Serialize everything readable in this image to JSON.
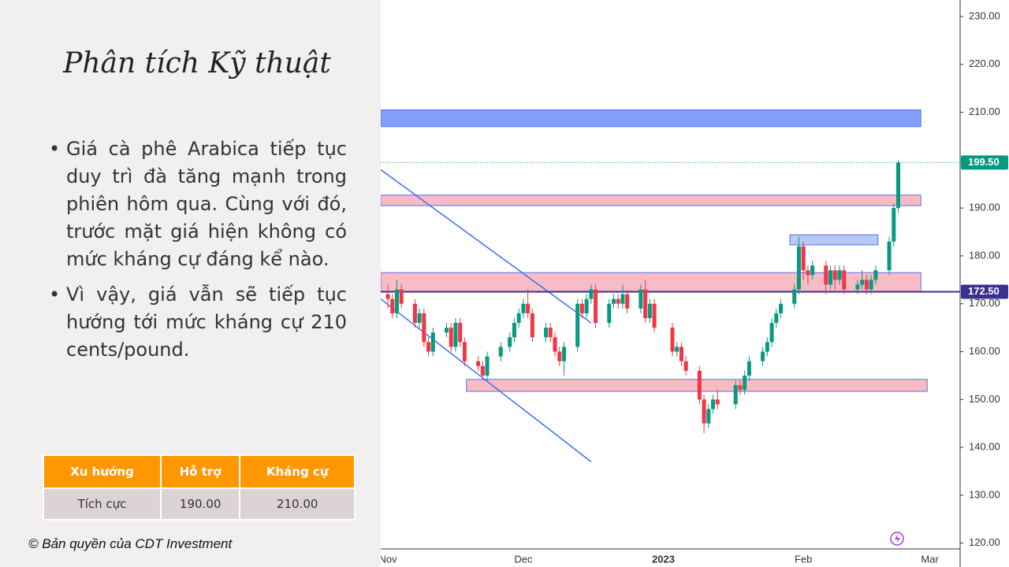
{
  "slide": {
    "title": "Phân tích Kỹ thuật",
    "bullets": [
      "Giá cà phê Arabica tiếp tục duy trì đà tăng mạnh trong phiên hôm qua. Cùng với đó, trước mặt giá hiện không có mức kháng cự đáng kể nào.",
      "Vì vậy, giá vẫn sẽ tiếp tục hướng tới mức kháng cự 210 cents/pound."
    ],
    "table": {
      "header": [
        "Xu hướng",
        "Hỗ trợ",
        "Kháng cự"
      ],
      "rows": [
        [
          "Tích cực",
          "190.00",
          "210.00"
        ]
      ]
    },
    "copyright": "© Bản quyền của CDT Investment"
  },
  "chart_data": {
    "type": "candlestick",
    "up_color": "#089981",
    "down_color": "#f23645",
    "xlim": [
      -1.57,
      126.7
    ],
    "ylim": [
      118.8,
      233.45
    ],
    "xticks": [
      {
        "value": 0,
        "label": "Nov"
      },
      {
        "value": 30,
        "label": "Dec"
      },
      {
        "value": 61,
        "label": "2023"
      },
      {
        "value": 92,
        "label": "Feb"
      },
      {
        "value": 120,
        "label": "Mar"
      }
    ],
    "yticks": [
      {
        "value": 120,
        "label": "120.00"
      },
      {
        "value": 130,
        "label": "130.00"
      },
      {
        "value": 140,
        "label": "140.00"
      },
      {
        "value": 150,
        "label": "150.00"
      },
      {
        "value": 160,
        "label": "160.00"
      },
      {
        "value": 170,
        "label": "170.00"
      },
      {
        "value": 180,
        "label": "180.00"
      },
      {
        "value": 190,
        "label": "190.00"
      },
      {
        "value": 200,
        "label": "200.00"
      },
      {
        "value": 210,
        "label": "210.00"
      },
      {
        "value": 220,
        "label": "220.00"
      },
      {
        "value": 230,
        "label": "230.00"
      }
    ],
    "price_labels": [
      {
        "value": 199.5,
        "label": "199.50",
        "color": "#089981"
      },
      {
        "value": 172.5,
        "label": "172.50",
        "color": "#3b2f8f"
      }
    ],
    "zones": [
      {
        "x": [
          -1.57,
          118
        ],
        "y": [
          207,
          210.5
        ],
        "color": "#7f9ffb"
      },
      {
        "x": [
          -1.57,
          118
        ],
        "y": [
          190.5,
          192.7
        ],
        "color": "#f8bcc4"
      },
      {
        "x": [
          -1.57,
          118
        ],
        "y": [
          172.5,
          176.5
        ],
        "color": "#f8bcc4"
      },
      {
        "x": [
          17.4,
          119.4
        ],
        "y": [
          151.7,
          154.2
        ],
        "color": "#f8bcc4"
      },
      {
        "x": [
          89,
          108.5
        ],
        "y": [
          182.3,
          184.4
        ],
        "color": "#b8c8f8"
      }
    ],
    "trendlines": [
      {
        "x": [
          -1.57,
          45
        ],
        "y": [
          198,
          166
        ]
      },
      {
        "x": [
          -1.57,
          45
        ],
        "y": [
          171,
          137
        ]
      }
    ],
    "x": [
      0,
      1,
      2,
      3,
      6,
      7,
      8,
      9,
      10,
      13,
      14,
      15,
      16,
      17,
      20,
      21,
      22,
      25,
      27,
      28,
      29,
      30,
      31,
      32,
      35,
      36,
      37,
      38,
      39,
      42,
      43,
      44,
      45,
      46,
      49,
      50,
      51,
      52,
      53,
      56,
      57,
      58,
      59,
      63,
      64,
      65,
      66,
      69,
      70,
      71,
      72,
      73,
      77,
      78,
      79,
      80,
      83,
      84,
      85,
      86,
      87,
      90,
      91,
      92,
      93,
      94,
      97,
      98,
      99,
      100,
      101,
      104,
      105,
      106,
      107,
      108,
      111,
      112,
      113
    ],
    "ohlc": [
      [
        172,
        174,
        169,
        171
      ],
      [
        171,
        172,
        167,
        168
      ],
      [
        168,
        175,
        167,
        173
      ],
      [
        173,
        174,
        169,
        170
      ],
      [
        170,
        171,
        165,
        166
      ],
      [
        166,
        169,
        165,
        168
      ],
      [
        168,
        169,
        161,
        162
      ],
      [
        162,
        163,
        159,
        160
      ],
      [
        160,
        165,
        159,
        164
      ],
      [
        164,
        166,
        163,
        165
      ],
      [
        165,
        166,
        160,
        161
      ],
      [
        161,
        167,
        160,
        166
      ],
      [
        166,
        167,
        161,
        162
      ],
      [
        162,
        163,
        157,
        158
      ],
      [
        158,
        159,
        156,
        157
      ],
      [
        157,
        158,
        154,
        155
      ],
      [
        155,
        160,
        154,
        159
      ],
      [
        159,
        162,
        158,
        161
      ],
      [
        161,
        164,
        160,
        163
      ],
      [
        163,
        167,
        162,
        166
      ],
      [
        166,
        169,
        165,
        168
      ],
      [
        168,
        171,
        167,
        170
      ],
      [
        170,
        173,
        167,
        168
      ],
      [
        168,
        169,
        162,
        163
      ],
      [
        163,
        166,
        162,
        165
      ],
      [
        165,
        166,
        162,
        163
      ],
      [
        163,
        164,
        159,
        160
      ],
      [
        160,
        161,
        157,
        158
      ],
      [
        158,
        162,
        155,
        161
      ],
      [
        161,
        171,
        160,
        170
      ],
      [
        170,
        171,
        167,
        168
      ],
      [
        168,
        172,
        167,
        171
      ],
      [
        171,
        174,
        170,
        173
      ],
      [
        173,
        174,
        165,
        166
      ],
      [
        166,
        171,
        165,
        170
      ],
      [
        170,
        172,
        169,
        171
      ],
      [
        171,
        172,
        169,
        170
      ],
      [
        170,
        174,
        169,
        172
      ],
      [
        172,
        173,
        168,
        169
      ],
      [
        169,
        174,
        168,
        173
      ],
      [
        173,
        175,
        166,
        167
      ],
      [
        167,
        171,
        166,
        170
      ],
      [
        170,
        171,
        164,
        165
      ],
      [
        165,
        166,
        159,
        160
      ],
      [
        160,
        162,
        159,
        161
      ],
      [
        161,
        162,
        157,
        158
      ],
      [
        158,
        159,
        155,
        156
      ],
      [
        156,
        157,
        149,
        150
      ],
      [
        150,
        151,
        143,
        145
      ],
      [
        145,
        149,
        144,
        148
      ],
      [
        148,
        151,
        147,
        150
      ],
      [
        150,
        152,
        148,
        149
      ],
      [
        149,
        154,
        148,
        153
      ],
      [
        153,
        154,
        151,
        152
      ],
      [
        152,
        156,
        151,
        155
      ],
      [
        155,
        159,
        154,
        158
      ],
      [
        158,
        161,
        157,
        160
      ],
      [
        160,
        163,
        159,
        162
      ],
      [
        162,
        167,
        161,
        166
      ],
      [
        166,
        169,
        165,
        168
      ],
      [
        168,
        171,
        167,
        170
      ],
      [
        170,
        174,
        169,
        173
      ],
      [
        173,
        184,
        172,
        182
      ],
      [
        182,
        183,
        175,
        177
      ],
      [
        177,
        178,
        174,
        176
      ],
      [
        176,
        179,
        175,
        178
      ],
      [
        178,
        179,
        172,
        174
      ],
      [
        174,
        178,
        173,
        177
      ],
      [
        177,
        178,
        173,
        175
      ],
      [
        175,
        178,
        174,
        177
      ],
      [
        177,
        178,
        172,
        173
      ],
      [
        173,
        175,
        172,
        174
      ],
      [
        174,
        177,
        173,
        175
      ],
      [
        175,
        176,
        172,
        173
      ],
      [
        173,
        176,
        172,
        175
      ],
      [
        175,
        178,
        174,
        177
      ],
      [
        177,
        184,
        176,
        183
      ],
      [
        183,
        191,
        182,
        190
      ],
      [
        190,
        200,
        189,
        199.5
      ]
    ]
  }
}
